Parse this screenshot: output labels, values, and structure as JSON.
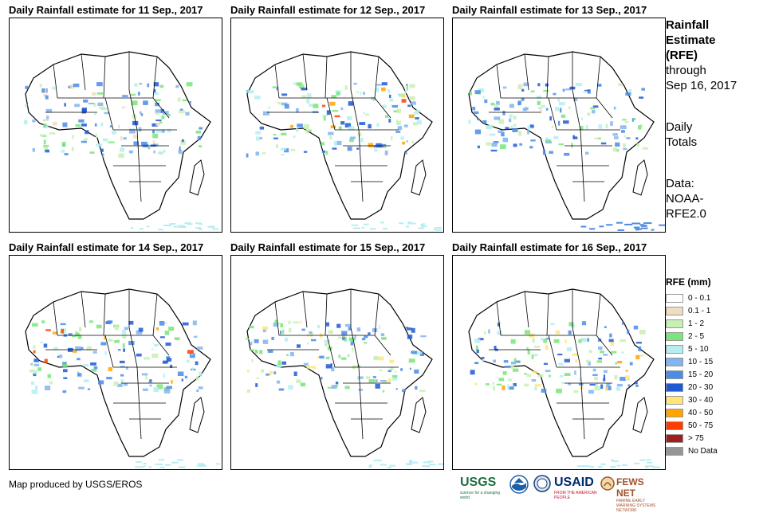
{
  "panels": [
    {
      "title": "Daily Rainfall estimate for 11 Sep., 2017"
    },
    {
      "title": "Daily Rainfall estimate for 12 Sep., 2017"
    },
    {
      "title": "Daily Rainfall estimate for 13 Sep., 2017"
    },
    {
      "title": "Daily Rainfall estimate for 14 Sep., 2017"
    },
    {
      "title": "Daily Rainfall estimate for 15 Sep., 2017"
    },
    {
      "title": "Daily Rainfall estimate for 16 Sep., 2017"
    }
  ],
  "side": {
    "line1": "Rainfall",
    "line2": "Estimate",
    "line3": "(RFE)",
    "line4": "through",
    "line5": "Sep 16, 2017",
    "line6": "Daily",
    "line7": "Totals",
    "line8": "Data:",
    "line9": "NOAA-",
    "line10": "RFE2.0"
  },
  "legend": {
    "title": "RFE (mm)",
    "items": [
      {
        "label": "0 - 0.1",
        "color": "#ffffff"
      },
      {
        "label": "0.1 - 1",
        "color": "#f0dcc0"
      },
      {
        "label": "1 - 2",
        "color": "#c8f0b4"
      },
      {
        "label": "2 - 5",
        "color": "#78e678"
      },
      {
        "label": "5 - 10",
        "color": "#b4eef0"
      },
      {
        "label": "10 - 15",
        "color": "#82b4f0"
      },
      {
        "label": "15 - 20",
        "color": "#4a8ce6"
      },
      {
        "label": "20 - 30",
        "color": "#1e5ad2"
      },
      {
        "label": "30 - 40",
        "color": "#ffe678"
      },
      {
        "label": "40 - 50",
        "color": "#ffa500"
      },
      {
        "label": "50 - 75",
        "color": "#ff3c00"
      },
      {
        "label": "> 75",
        "color": "#a01e1e"
      },
      {
        "label": "No Data",
        "color": "#969696"
      }
    ]
  },
  "footer": {
    "text": "Map produced by USGS/EROS"
  },
  "logos": {
    "usgs": "USGS",
    "usgs_sub": "science for a changing world",
    "usaid": "USAID",
    "usaid_sub": "FROM THE AMERICAN PEOPLE",
    "fews": "FEWS NET",
    "fews_sub": "FAMINE EARLY WARNING SYSTEMS NETWORK"
  }
}
